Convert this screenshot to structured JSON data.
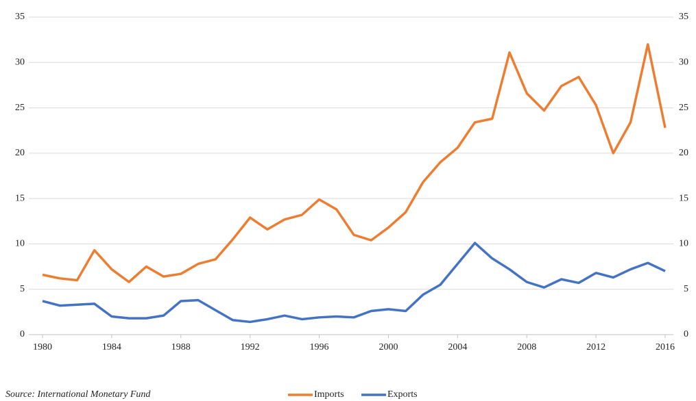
{
  "chart_data": {
    "type": "line",
    "source": "Source: International Monetary Fund",
    "x": [
      1980,
      1981,
      1982,
      1983,
      1984,
      1985,
      1986,
      1987,
      1988,
      1989,
      1990,
      1991,
      1992,
      1993,
      1994,
      1995,
      1996,
      1997,
      1998,
      1999,
      2000,
      2001,
      2002,
      2003,
      2004,
      2005,
      2006,
      2007,
      2008,
      2009,
      2010,
      2011,
      2012,
      2013,
      2014,
      2015,
      2016
    ],
    "series": [
      {
        "name": "Imports",
        "color": "#ed7d31",
        "values": [
          6.6,
          6.2,
          6.0,
          9.3,
          7.2,
          5.8,
          7.5,
          6.4,
          6.7,
          7.8,
          8.3,
          10.5,
          12.9,
          11.6,
          12.7,
          13.2,
          14.9,
          13.8,
          11.0,
          10.4,
          11.8,
          13.5,
          16.8,
          19.0,
          20.6,
          23.4,
          23.8,
          31.1,
          26.6,
          24.7,
          27.4,
          28.4,
          25.3,
          20.0,
          23.4,
          32.0,
          22.8
        ]
      },
      {
        "name": "Exports",
        "color": "#4472c4",
        "values": [
          3.7,
          3.2,
          3.3,
          3.4,
          2.0,
          1.8,
          1.8,
          2.1,
          3.7,
          3.8,
          2.7,
          1.6,
          1.4,
          1.7,
          2.1,
          1.7,
          1.9,
          2.0,
          1.9,
          2.6,
          2.8,
          2.6,
          4.4,
          5.5,
          7.8,
          10.1,
          8.4,
          7.2,
          5.8,
          5.2,
          6.1,
          5.7,
          6.8,
          6.3,
          7.2,
          7.9,
          7.0
        ]
      }
    ],
    "xlim": [
      1980,
      2016
    ],
    "xticks": [
      1980,
      1984,
      1988,
      1992,
      1996,
      2000,
      2004,
      2008,
      2012,
      2016
    ],
    "ylim": [
      0,
      35
    ],
    "yticks": [
      0,
      5,
      10,
      15,
      20,
      25,
      30,
      35
    ],
    "y2lim": [
      0,
      35
    ],
    "y2ticks": [
      0,
      5,
      10,
      15,
      20,
      25,
      30,
      35
    ],
    "grid": true,
    "legend": "bottom"
  }
}
